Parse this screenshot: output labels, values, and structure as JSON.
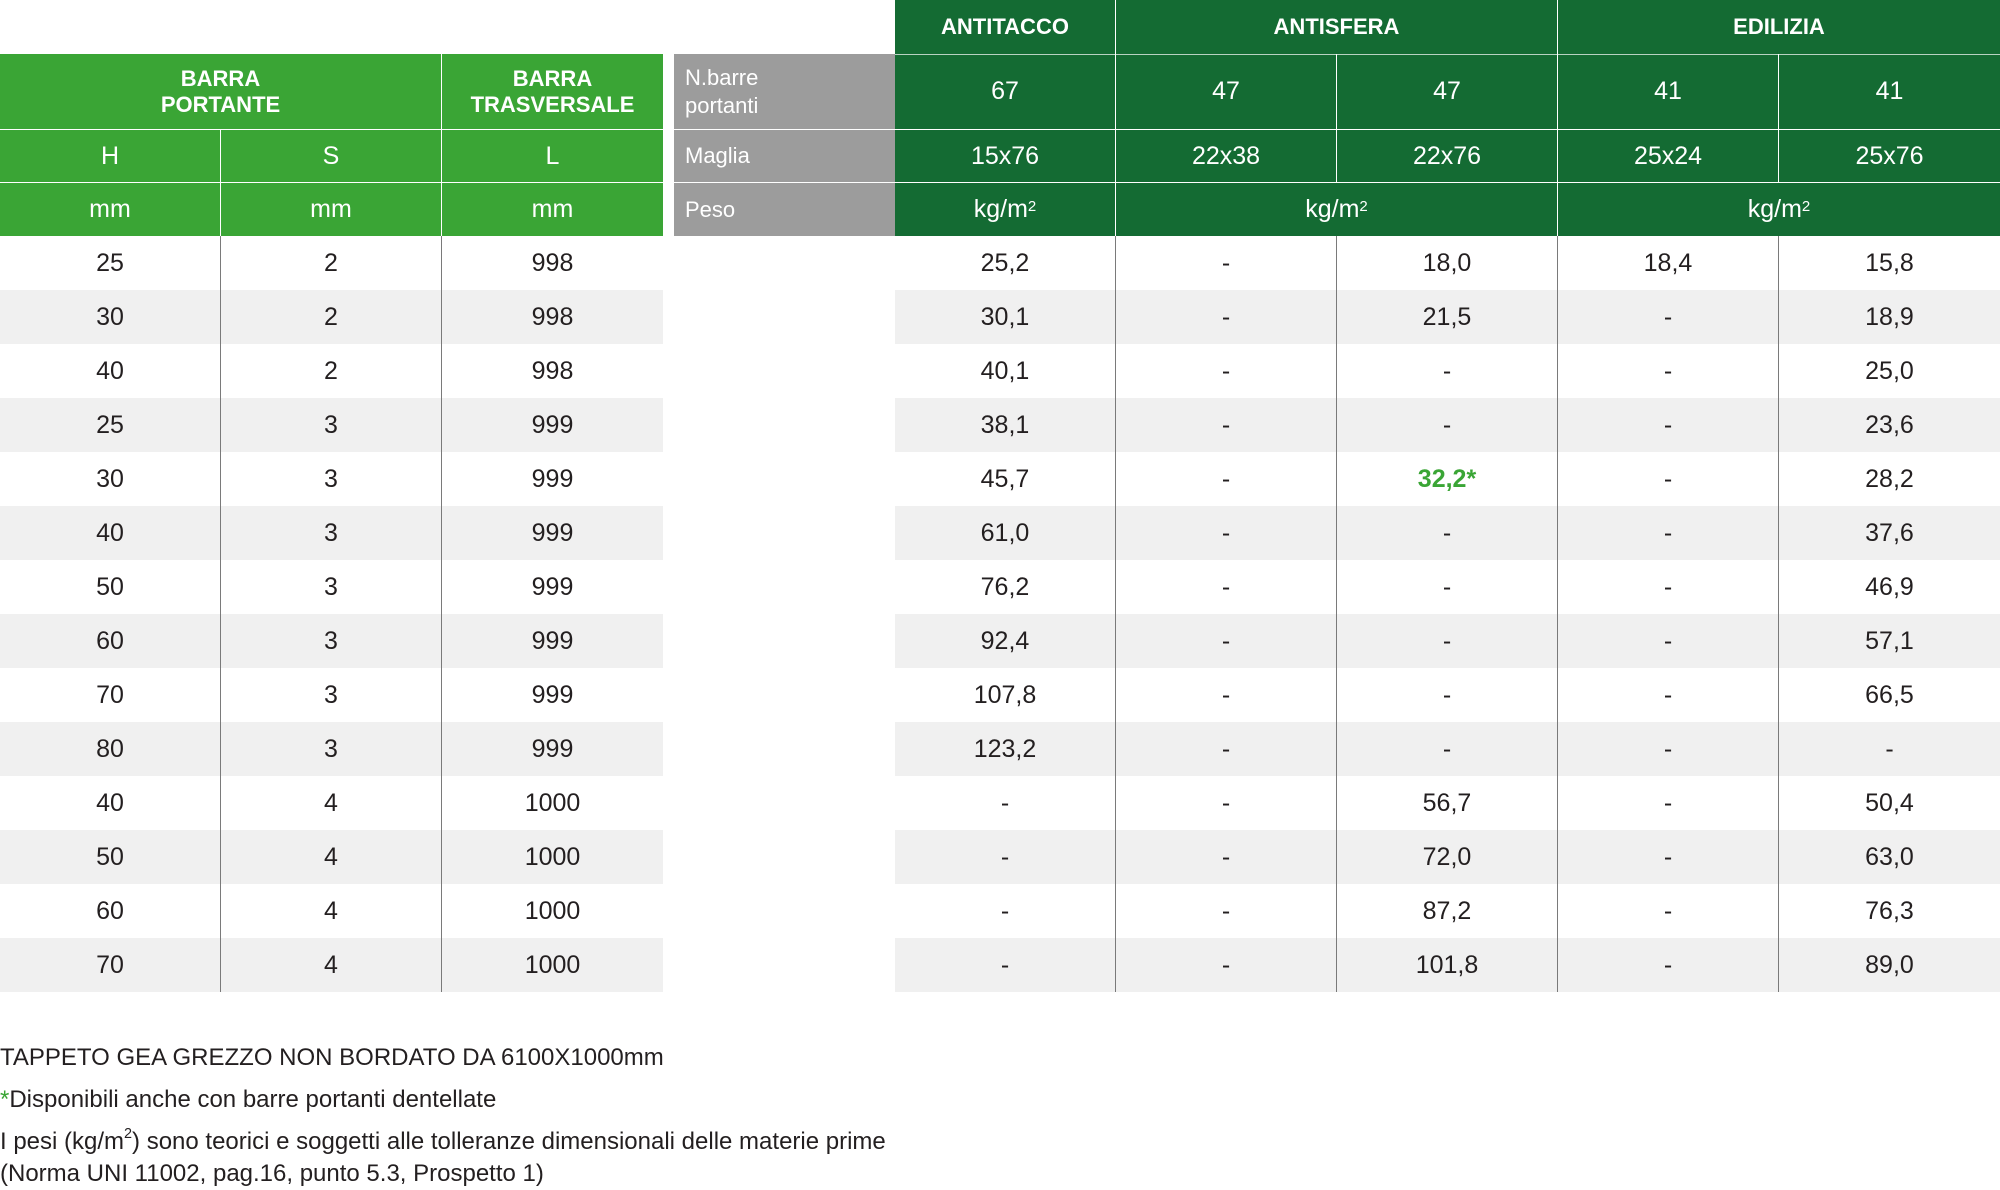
{
  "left_header": {
    "barra_portante": [
      "BARRA",
      "PORTANTE"
    ],
    "barra_trasversale": [
      "BARRA",
      "TRASVERSALE"
    ],
    "col_h": "H",
    "col_s": "S",
    "col_l": "L",
    "unit": "mm"
  },
  "right_header": {
    "groups": [
      "ANTITACCO",
      "ANTISFERA",
      "EDILIZIA"
    ],
    "row_labels": {
      "n_barre": [
        "N.barre",
        "portanti"
      ],
      "maglia": "Maglia",
      "peso": "Peso"
    },
    "n_barre_values": [
      "67",
      "47",
      "47",
      "41",
      "41"
    ],
    "maglia_values": [
      "15x76",
      "22x38",
      "22x76",
      "25x24",
      "25x76"
    ],
    "peso_unit_base": "kg/m",
    "peso_unit_exp": "2"
  },
  "rows": [
    {
      "h": "25",
      "s": "2",
      "l": "998",
      "v": [
        "25,2",
        "-",
        "18,0",
        "18,4",
        "15,8"
      ]
    },
    {
      "h": "30",
      "s": "2",
      "l": "998",
      "v": [
        "30,1",
        "-",
        "21,5",
        "-",
        "18,9"
      ]
    },
    {
      "h": "40",
      "s": "2",
      "l": "998",
      "v": [
        "40,1",
        "-",
        "-",
        "-",
        "25,0"
      ]
    },
    {
      "h": "25",
      "s": "3",
      "l": "999",
      "v": [
        "38,1",
        "-",
        "-",
        "-",
        "23,6"
      ]
    },
    {
      "h": "30",
      "s": "3",
      "l": "999",
      "v": [
        "45,7",
        "-",
        "32,2*",
        "-",
        "28,2"
      ]
    },
    {
      "h": "40",
      "s": "3",
      "l": "999",
      "v": [
        "61,0",
        "-",
        "-",
        "-",
        "37,6"
      ]
    },
    {
      "h": "50",
      "s": "3",
      "l": "999",
      "v": [
        "76,2",
        "-",
        "-",
        "-",
        "46,9"
      ]
    },
    {
      "h": "60",
      "s": "3",
      "l": "999",
      "v": [
        "92,4",
        "-",
        "-",
        "-",
        "57,1"
      ]
    },
    {
      "h": "70",
      "s": "3",
      "l": "999",
      "v": [
        "107,8",
        "-",
        "-",
        "-",
        "66,5"
      ]
    },
    {
      "h": "80",
      "s": "3",
      "l": "999",
      "v": [
        "123,2",
        "-",
        "-",
        "-",
        "-"
      ]
    },
    {
      "h": "40",
      "s": "4",
      "l": "1000",
      "v": [
        "-",
        "-",
        "56,7",
        "-",
        "50,4"
      ]
    },
    {
      "h": "50",
      "s": "4",
      "l": "1000",
      "v": [
        "-",
        "-",
        "72,0",
        "-",
        "63,0"
      ]
    },
    {
      "h": "60",
      "s": "4",
      "l": "1000",
      "v": [
        "-",
        "-",
        "87,2",
        "-",
        "76,3"
      ]
    },
    {
      "h": "70",
      "s": "4",
      "l": "1000",
      "v": [
        "-",
        "-",
        "101,8",
        "-",
        "89,0"
      ]
    }
  ],
  "highlight_cell": {
    "row": 4,
    "col": 2
  },
  "notes": {
    "line1": "TAPPETO GEA GREZZO NON BORDATO DA 6100X1000mm",
    "line2_star": "*",
    "line2_text": "Disponibili anche con barre portanti dentellate",
    "line3_pre": "I pesi (kg/m",
    "line3_exp": "2",
    "line3_post": ") sono teorici e soggetti alle tolleranze dimensionali delle materie prime",
    "line4": "(Norma UNI 11002, pag.16, punto 5.3, Prospetto 1)"
  },
  "colors": {
    "light_green": "#3aa535",
    "dark_green": "#146b33",
    "gray_label": "#9c9c9c",
    "row_shade": "#f0f0f0"
  }
}
